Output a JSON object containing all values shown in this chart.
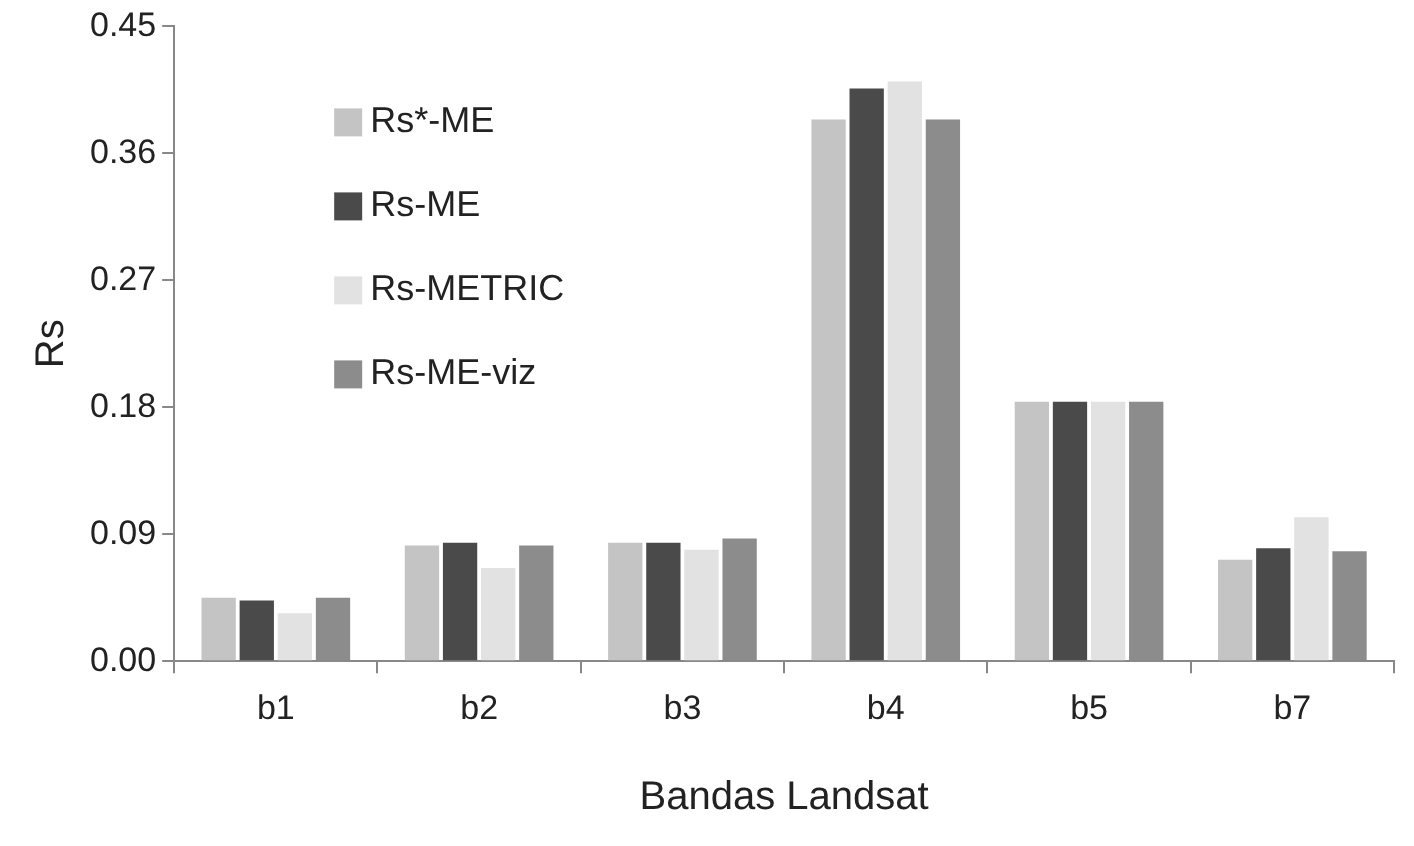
{
  "chart_data": {
    "type": "bar",
    "xlabel": "Bandas Landsat",
    "ylabel": "Rs",
    "categories": [
      "b1",
      "b2",
      "b3",
      "b4",
      "b5",
      "b7"
    ],
    "series": [
      {
        "name": "Rs*-ME",
        "color": "#c4c4c4",
        "values": [
          0.045,
          0.082,
          0.084,
          0.384,
          0.184,
          0.072
        ]
      },
      {
        "name": "Rs-ME",
        "color": "#4a4a4a",
        "values": [
          0.043,
          0.084,
          0.084,
          0.406,
          0.184,
          0.08
        ]
      },
      {
        "name": "Rs-METRIC",
        "color": "#e2e2e2",
        "values": [
          0.034,
          0.066,
          0.079,
          0.411,
          0.184,
          0.102
        ]
      },
      {
        "name": "Rs-ME-viz",
        "color": "#8c8c8c",
        "values": [
          0.045,
          0.082,
          0.087,
          0.384,
          0.184,
          0.078
        ]
      }
    ],
    "ylim": [
      0,
      0.45
    ],
    "yticks": [
      {
        "value": 0,
        "label": "0.00"
      },
      {
        "value": 0.09,
        "label": "0.09"
      },
      {
        "value": 0.18,
        "label": "0.18"
      },
      {
        "value": 0.27,
        "label": "0.27"
      },
      {
        "value": 0.36,
        "label": "0.36"
      },
      {
        "value": 0.45,
        "label": "0.45"
      }
    ],
    "grid": false,
    "legend": "top left"
  }
}
